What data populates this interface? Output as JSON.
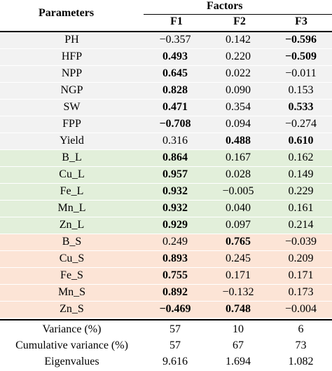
{
  "header": {
    "parameters": "Parameters",
    "factors": "Factors",
    "f1": "F1",
    "f2": "F2",
    "f3": "F3"
  },
  "rows": [
    {
      "param": "PH",
      "f1": "−0.357",
      "f2": "0.142",
      "f3": "−0.596",
      "bold": [
        false,
        false,
        true
      ]
    },
    {
      "param": "HFP",
      "f1": "0.493",
      "f2": "0.220",
      "f3": "−0.509",
      "bold": [
        true,
        false,
        true
      ]
    },
    {
      "param": "NPP",
      "f1": "0.645",
      "f2": "0.022",
      "f3": "−0.011",
      "bold": [
        true,
        false,
        false
      ]
    },
    {
      "param": "NGP",
      "f1": "0.828",
      "f2": "0.090",
      "f3": "0.153",
      "bold": [
        true,
        false,
        false
      ]
    },
    {
      "param": "SW",
      "f1": "0.471",
      "f2": "0.354",
      "f3": "0.533",
      "bold": [
        true,
        false,
        true
      ]
    },
    {
      "param": "FPP",
      "f1": "−0.708",
      "f2": "0.094",
      "f3": "−0.274",
      "bold": [
        true,
        false,
        false
      ]
    },
    {
      "param": "Yield",
      "f1": "0.316",
      "f2": "0.488",
      "f3": "0.610",
      "bold": [
        false,
        true,
        true
      ]
    },
    {
      "param": "B_L",
      "f1": "0.864",
      "f2": "0.167",
      "f3": "0.162",
      "bold": [
        true,
        false,
        false
      ]
    },
    {
      "param": "Cu_L",
      "f1": "0.957",
      "f2": "0.028",
      "f3": "0.149",
      "bold": [
        true,
        false,
        false
      ]
    },
    {
      "param": "Fe_L",
      "f1": "0.932",
      "f2": "−0.005",
      "f3": "0.229",
      "bold": [
        true,
        false,
        false
      ]
    },
    {
      "param": "Mn_L",
      "f1": "0.932",
      "f2": "0.040",
      "f3": "0.161",
      "bold": [
        true,
        false,
        false
      ]
    },
    {
      "param": "Zn_L",
      "f1": "0.929",
      "f2": "0.097",
      "f3": "0.214",
      "bold": [
        true,
        false,
        false
      ]
    },
    {
      "param": "B_S",
      "f1": "0.249",
      "f2": "0.765",
      "f3": "−0.039",
      "bold": [
        false,
        true,
        false
      ]
    },
    {
      "param": "Cu_S",
      "f1": "0.893",
      "f2": "0.245",
      "f3": "0.209",
      "bold": [
        true,
        false,
        false
      ]
    },
    {
      "param": "Fe_S",
      "f1": "0.755",
      "f2": "0.171",
      "f3": "0.171",
      "bold": [
        true,
        false,
        false
      ]
    },
    {
      "param": "Mn_S",
      "f1": "0.892",
      "f2": "−0.132",
      "f3": "0.173",
      "bold": [
        true,
        false,
        false
      ]
    },
    {
      "param": "Zn_S",
      "f1": "−0.469",
      "f2": "0.748",
      "f3": "−0.004",
      "bold": [
        true,
        true,
        false
      ]
    }
  ],
  "footer": [
    {
      "param": "Variance (%)",
      "f1": "57",
      "f2": "10",
      "f3": "6"
    },
    {
      "param": "Cumulative variance (%)",
      "f1": "57",
      "f2": "67",
      "f3": "73"
    },
    {
      "param": "Eigenvalues",
      "f1": "9.616",
      "f2": "1.694",
      "f3": "1.082"
    }
  ],
  "colors": {
    "grey_band": "#f2f2f2",
    "green_band": "#e2efda",
    "peach_band": "#fce4d6"
  }
}
